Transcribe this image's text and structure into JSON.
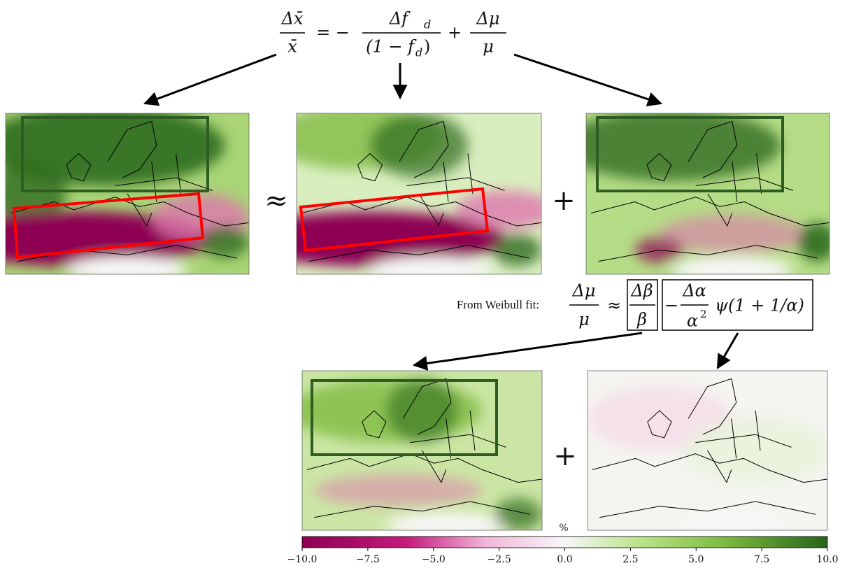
{
  "equation_top": {
    "lhs": {
      "num": "Δx̄",
      "den": "x̄"
    },
    "equals": "= −",
    "term1": {
      "num": "Δf",
      "num_sub": "d",
      "den": "(1 − f",
      "den_sub": "d",
      "den_close": ")"
    },
    "plus": "+",
    "term2": {
      "num": "Δμ",
      "den": "μ"
    }
  },
  "approx_symbol": "≈",
  "plus_symbols": [
    "+",
    "+"
  ],
  "weibull": {
    "label": "From Weibull fit:",
    "lhs": {
      "num": "Δμ",
      "den": "μ"
    },
    "approx": "≈",
    "term1": {
      "num": "Δβ",
      "den": "β"
    },
    "minus": "−",
    "term2": {
      "num": "Δα",
      "den": "α",
      "den_sup": "2"
    },
    "psi": "ψ(1 + 1/α)"
  },
  "colorbar": {
    "label": "%",
    "lim": [
      -10,
      10
    ],
    "ticks": [
      {
        "value": -10,
        "label": "−10.0"
      },
      {
        "value": -7.5,
        "label": "−7.5"
      },
      {
        "value": -5,
        "label": "−5.0"
      },
      {
        "value": -2.5,
        "label": "−2.5"
      },
      {
        "value": 0,
        "label": "0.0"
      },
      {
        "value": 2.5,
        "label": "2.5"
      },
      {
        "value": 5,
        "label": "5.0"
      },
      {
        "value": 7.5,
        "label": "7.5"
      },
      {
        "value": 10,
        "label": "10.0"
      }
    ]
  }
}
